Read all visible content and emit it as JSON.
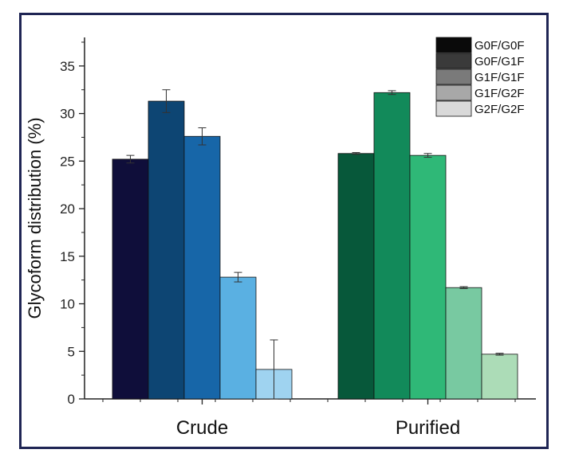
{
  "chart_data": {
    "type": "bar",
    "title": "",
    "xlabel": "",
    "ylabel": "Glycoform distribution (%)",
    "ylim": [
      0,
      38
    ],
    "yticks": [
      0,
      5,
      10,
      15,
      20,
      25,
      30,
      35
    ],
    "categories": [
      "Crude",
      "Purified"
    ],
    "series": [
      {
        "name": "G0F/G0F",
        "values": [
          25.2,
          25.8
        ],
        "errors": [
          0.4,
          0.1
        ],
        "colors": [
          "#0f0e3a",
          "#07583a"
        ],
        "legend_color": "#0a0a0a"
      },
      {
        "name": "G0F/G1F",
        "values": [
          31.3,
          32.2
        ],
        "errors": [
          1.2,
          0.2
        ],
        "colors": [
          "#0d4573",
          "#128a5a"
        ],
        "legend_color": "#3a3a3a"
      },
      {
        "name": "G1F/G1F",
        "values": [
          27.6,
          25.6
        ],
        "errors": [
          0.9,
          0.2
        ],
        "colors": [
          "#1766a8",
          "#2fb877"
        ],
        "legend_color": "#7a7a7a"
      },
      {
        "name": "G1F/G2F",
        "values": [
          12.8,
          11.7
        ],
        "errors": [
          0.5,
          0.1
        ],
        "colors": [
          "#5ab0e2",
          "#78c9a1"
        ],
        "legend_color": "#a8a8a8"
      },
      {
        "name": "G2F/G2F",
        "values": [
          3.1,
          4.7
        ],
        "errors": [
          3.1,
          0.1
        ],
        "colors": [
          "#9fd3f0",
          "#acdcb7"
        ],
        "legend_color": "#d9d9d9"
      }
    ],
    "legend_position": "top-right"
  }
}
